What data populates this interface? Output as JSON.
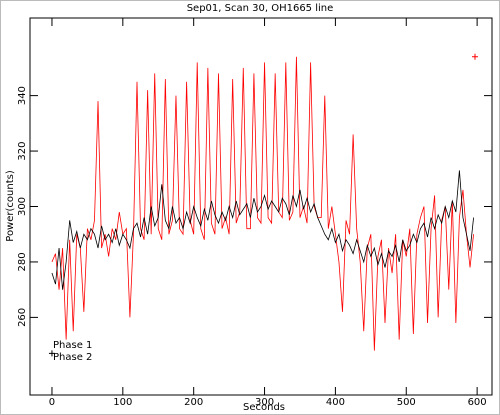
{
  "chart_data": {
    "type": "line",
    "title": "Sep01, Scan 30, OH1665 line",
    "xlabel": "Seconds",
    "ylabel": "Power(counts)",
    "x": [
      0,
      5,
      10,
      15,
      20,
      25,
      30,
      35,
      40,
      45,
      50,
      55,
      60,
      65,
      70,
      75,
      80,
      85,
      90,
      95,
      100,
      105,
      110,
      115,
      120,
      125,
      130,
      135,
      140,
      145,
      150,
      155,
      160,
      165,
      170,
      175,
      180,
      185,
      190,
      195,
      200,
      205,
      210,
      215,
      220,
      225,
      230,
      235,
      240,
      245,
      250,
      255,
      260,
      265,
      270,
      275,
      280,
      285,
      290,
      295,
      300,
      305,
      310,
      315,
      320,
      325,
      330,
      335,
      340,
      345,
      350,
      355,
      360,
      365,
      370,
      375,
      380,
      385,
      390,
      395,
      400,
      405,
      410,
      415,
      420,
      425,
      430,
      435,
      440,
      445,
      450,
      455,
      460,
      465,
      470,
      475,
      480,
      485,
      490,
      495,
      500,
      505,
      510,
      515,
      520,
      525,
      530,
      535,
      540,
      545,
      550,
      555,
      560,
      565,
      570,
      575,
      580,
      585,
      590,
      595
    ],
    "series": [
      {
        "name": "Phase 1",
        "color": "#ff0000",
        "values": [
          280,
          283,
          270,
          285,
          252,
          288,
          255,
          290,
          285,
          262,
          292,
          288,
          295,
          338,
          285,
          290,
          282,
          292,
          288,
          298,
          290,
          292,
          260,
          290,
          345,
          292,
          288,
          342,
          290,
          348,
          292,
          288,
          346,
          290,
          295,
          340,
          292,
          290,
          345,
          295,
          290,
          352,
          292,
          288,
          350,
          294,
          290,
          348,
          292,
          296,
          290,
          346,
          294,
          298,
          350,
          292,
          292,
          348,
          296,
          294,
          352,
          296,
          294,
          348,
          298,
          296,
          352,
          295,
          298,
          354,
          296,
          300,
          294,
          352,
          300,
          296,
          296,
          340,
          292,
          300,
          290,
          280,
          262,
          295,
          290,
          326,
          292,
          280,
          255,
          285,
          290,
          248,
          282,
          288,
          258,
          285,
          276,
          290,
          252,
          288,
          282,
          292,
          254,
          290,
          296,
          300,
          258,
          292,
          304,
          260,
          295,
          300,
          270,
          302,
          258,
          296,
          306,
          290,
          278,
          290
        ]
      },
      {
        "name": "Phase 2",
        "color": "#000000",
        "values": [
          276,
          272,
          285,
          270,
          280,
          295,
          287,
          291,
          285,
          290,
          288,
          292,
          290,
          285,
          293,
          288,
          290,
          287,
          292,
          286,
          290,
          288,
          285,
          292,
          294,
          289,
          296,
          290,
          300,
          293,
          296,
          308,
          295,
          292,
          300,
          294,
          296,
          292,
          298,
          294,
          300,
          296,
          293,
          299,
          295,
          302,
          297,
          294,
          298,
          295,
          300,
          296,
          302,
          297,
          299,
          301,
          296,
          303,
          298,
          300,
          304,
          299,
          302,
          300,
          298,
          303,
          301,
          297,
          304,
          300,
          306,
          299,
          303,
          298,
          301,
          296,
          293,
          290,
          288,
          292,
          287,
          290,
          284,
          288,
          286,
          283,
          288,
          284,
          280,
          286,
          282,
          285,
          279,
          283,
          278,
          284,
          282,
          286,
          280,
          288,
          284,
          286,
          290,
          287,
          292,
          294,
          289,
          296,
          292,
          297,
          294,
          300,
          296,
          302,
          298,
          313,
          296,
          290,
          284,
          296
        ]
      }
    ],
    "points": [
      {
        "x": 597,
        "y": 354,
        "color": "#ff0000"
      },
      {
        "x": 0,
        "y": 247,
        "color": "#000000"
      }
    ],
    "xlim": [
      -31,
      621
    ],
    "ylim": [
      232,
      368
    ],
    "xticks": [
      0,
      100,
      200,
      300,
      400,
      500,
      600
    ],
    "yticks": [
      260,
      280,
      300,
      320,
      340
    ],
    "legend": "lower left"
  }
}
